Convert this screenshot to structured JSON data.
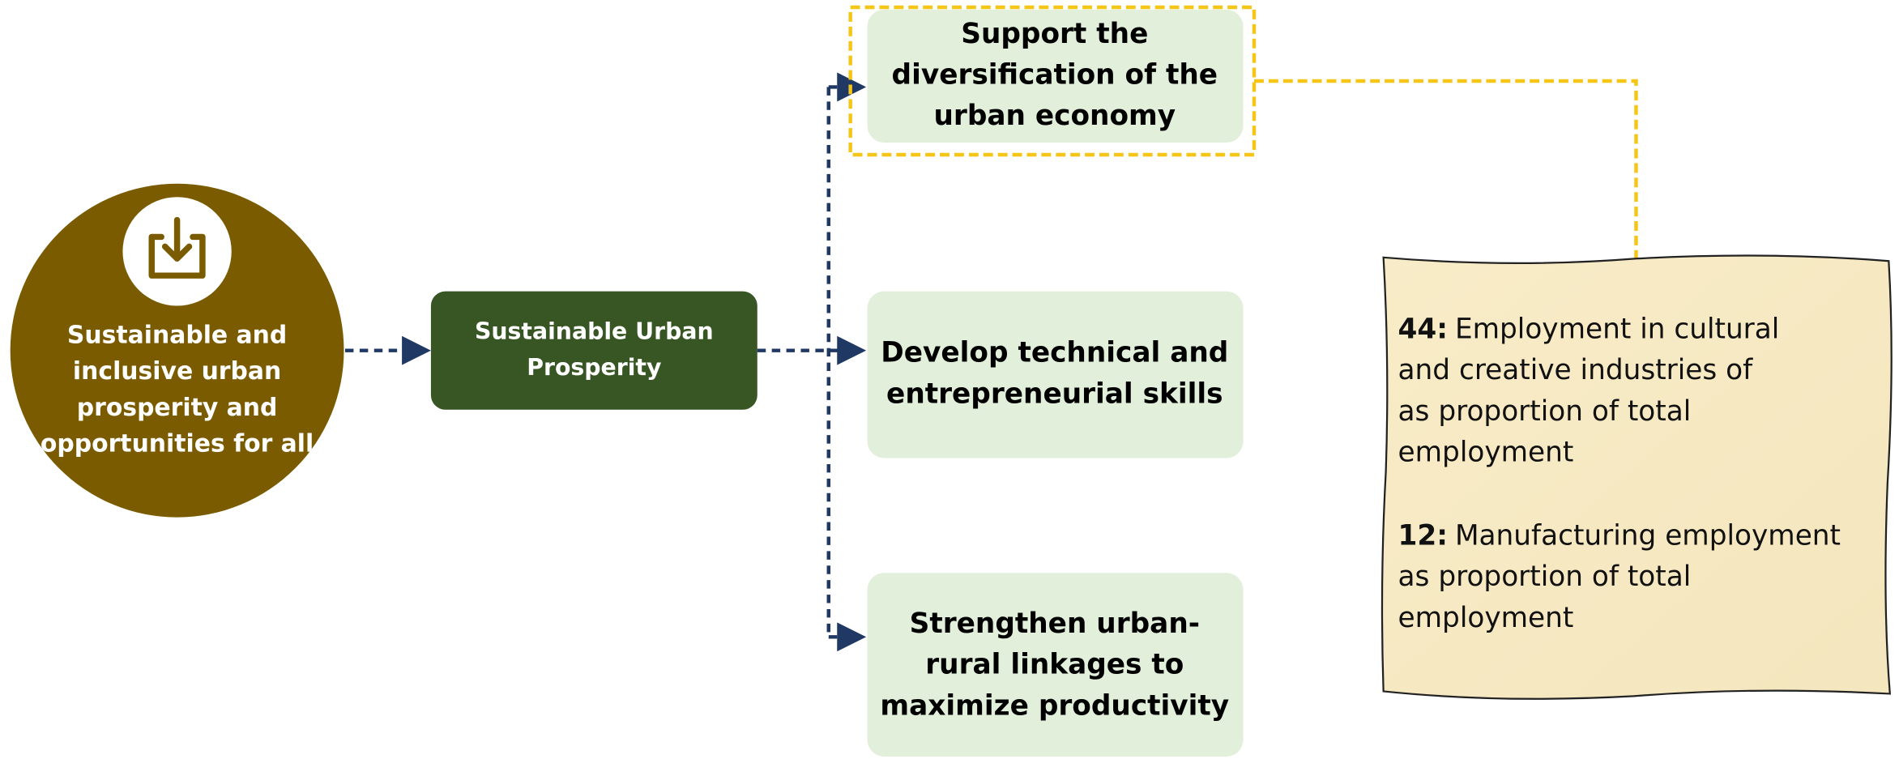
{
  "root": {
    "label": [
      "Sustainable and",
      "inclusive urban",
      "prosperity and",
      "opportunities for all"
    ]
  },
  "hub": {
    "label": [
      "Sustainable Urban",
      "Prosperity"
    ]
  },
  "branches": [
    {
      "label": [
        "Support the",
        "diversification of the",
        "urban economy"
      ]
    },
    {
      "label": [
        "Develop technical and",
        "entrepreneurial skills"
      ]
    },
    {
      "label": [
        "Strengthen urban-",
        "rural linkages to",
        "maximize productivity"
      ]
    }
  ],
  "note": {
    "items": [
      {
        "code": "44:",
        "lines": [
          "Employment in cultural",
          "and creative industries of",
          "as proportion of total",
          "employment"
        ]
      },
      {
        "code": "12:",
        "lines": [
          "Manufacturing employment",
          "as proportion of total",
          "employment"
        ]
      }
    ]
  }
}
